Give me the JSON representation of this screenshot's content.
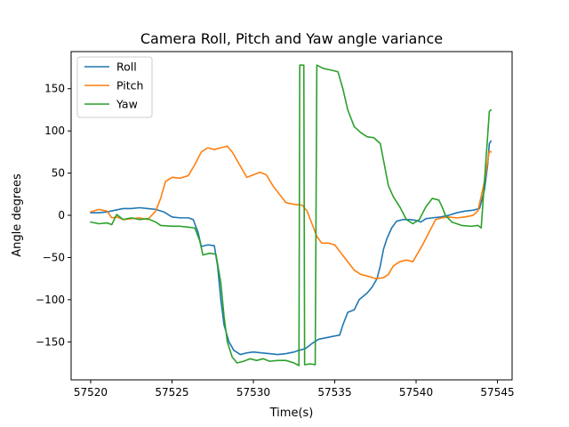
{
  "chart_data": {
    "type": "line",
    "title": "Camera Roll, Pitch and Yaw angle variance",
    "xlabel": "Time(s)",
    "ylabel": "Angle degrees",
    "xlim": [
      57518.8,
      57545.9
    ],
    "ylim": [
      -195,
      194
    ],
    "xticks": [
      57520,
      57525,
      57530,
      57535,
      57540,
      57545
    ],
    "xtick_labels": [
      "57520",
      "57525",
      "57530",
      "57535",
      "57540",
      "57545"
    ],
    "yticks": [
      -150,
      -100,
      -50,
      0,
      50,
      100,
      150
    ],
    "ytick_labels": [
      "−150",
      "−100",
      "−50",
      "0",
      "50",
      "100",
      "150"
    ],
    "grid": false,
    "legend": "top-left",
    "series": [
      {
        "name": "Roll",
        "color": "#1f77b4",
        "points": [
          [
            57520.0,
            3
          ],
          [
            57520.5,
            3
          ],
          [
            57521.0,
            4
          ],
          [
            57521.5,
            6
          ],
          [
            57522.0,
            8
          ],
          [
            57522.5,
            8
          ],
          [
            57523.0,
            9
          ],
          [
            57523.5,
            8
          ],
          [
            57524.0,
            7
          ],
          [
            57524.5,
            4
          ],
          [
            57525.0,
            -2
          ],
          [
            57525.5,
            -3
          ],
          [
            57526.0,
            -3
          ],
          [
            57526.3,
            -5
          ],
          [
            57526.6,
            -20
          ],
          [
            57526.8,
            -37
          ],
          [
            57527.2,
            -35
          ],
          [
            57527.6,
            -36
          ],
          [
            57527.8,
            -60
          ],
          [
            57528.0,
            -100
          ],
          [
            57528.2,
            -130
          ],
          [
            57528.5,
            -150
          ],
          [
            57528.8,
            -160
          ],
          [
            57529.2,
            -165
          ],
          [
            57529.6,
            -163
          ],
          [
            57530.0,
            -162
          ],
          [
            57530.5,
            -163
          ],
          [
            57531.0,
            -164
          ],
          [
            57531.5,
            -165
          ],
          [
            57532.0,
            -164
          ],
          [
            57532.5,
            -162
          ],
          [
            57532.8,
            -160
          ],
          [
            57533.2,
            -158
          ],
          [
            57533.6,
            -152
          ],
          [
            57534.0,
            -147
          ],
          [
            57534.5,
            -145
          ],
          [
            57535.0,
            -143
          ],
          [
            57535.3,
            -142
          ],
          [
            57535.5,
            -130
          ],
          [
            57535.8,
            -115
          ],
          [
            57536.2,
            -112
          ],
          [
            57536.5,
            -100
          ],
          [
            57537.0,
            -92
          ],
          [
            57537.3,
            -85
          ],
          [
            57537.6,
            -75
          ],
          [
            57537.8,
            -60
          ],
          [
            57538.0,
            -40
          ],
          [
            57538.2,
            -28
          ],
          [
            57538.5,
            -15
          ],
          [
            57538.8,
            -7
          ],
          [
            57539.2,
            -5
          ],
          [
            57539.6,
            -5
          ],
          [
            57540.0,
            -6
          ],
          [
            57540.3,
            -8
          ],
          [
            57540.6,
            -4
          ],
          [
            57541.0,
            -3
          ],
          [
            57541.5,
            -2
          ],
          [
            57542.0,
            0
          ],
          [
            57542.5,
            3
          ],
          [
            57543.0,
            5
          ],
          [
            57543.5,
            6
          ],
          [
            57543.9,
            8
          ],
          [
            57544.2,
            30
          ],
          [
            57544.4,
            60
          ],
          [
            57544.5,
            85
          ],
          [
            57544.6,
            88
          ]
        ]
      },
      {
        "name": "Pitch",
        "color": "#ff7f0e",
        "points": [
          [
            57520.0,
            4
          ],
          [
            57520.5,
            7
          ],
          [
            57521.0,
            5
          ],
          [
            57521.3,
            -3
          ],
          [
            57521.6,
            -2
          ],
          [
            57522.0,
            -5
          ],
          [
            57522.5,
            -4
          ],
          [
            57523.0,
            -3
          ],
          [
            57523.5,
            -5
          ],
          [
            57524.0,
            5
          ],
          [
            57524.3,
            20
          ],
          [
            57524.6,
            40
          ],
          [
            57525.0,
            45
          ],
          [
            57525.5,
            44
          ],
          [
            57526.0,
            47
          ],
          [
            57526.4,
            60
          ],
          [
            57526.8,
            75
          ],
          [
            57527.2,
            80
          ],
          [
            57527.6,
            78
          ],
          [
            57528.0,
            80
          ],
          [
            57528.4,
            82
          ],
          [
            57528.7,
            75
          ],
          [
            57529.0,
            65
          ],
          [
            57529.3,
            55
          ],
          [
            57529.6,
            45
          ],
          [
            57530.0,
            48
          ],
          [
            57530.4,
            51
          ],
          [
            57530.8,
            48
          ],
          [
            57531.2,
            35
          ],
          [
            57531.6,
            25
          ],
          [
            57532.0,
            15
          ],
          [
            57532.5,
            13
          ],
          [
            57533.0,
            12
          ],
          [
            57533.3,
            5
          ],
          [
            57533.6,
            -10
          ],
          [
            57533.9,
            -25
          ],
          [
            57534.2,
            -33
          ],
          [
            57534.6,
            -33
          ],
          [
            57535.0,
            -35
          ],
          [
            57535.4,
            -45
          ],
          [
            57535.8,
            -55
          ],
          [
            57536.2,
            -65
          ],
          [
            57536.6,
            -70
          ],
          [
            57537.0,
            -72
          ],
          [
            57537.5,
            -75
          ],
          [
            57538.0,
            -74
          ],
          [
            57538.3,
            -70
          ],
          [
            57538.6,
            -60
          ],
          [
            57539.0,
            -55
          ],
          [
            57539.4,
            -53
          ],
          [
            57539.8,
            -55
          ],
          [
            57540.1,
            -45
          ],
          [
            57540.4,
            -35
          ],
          [
            57540.8,
            -20
          ],
          [
            57541.2,
            -5
          ],
          [
            57541.6,
            -3
          ],
          [
            57542.0,
            -2
          ],
          [
            57542.5,
            -3
          ],
          [
            57543.0,
            -2
          ],
          [
            57543.5,
            0
          ],
          [
            57543.8,
            5
          ],
          [
            57544.2,
            40
          ],
          [
            57544.5,
            76
          ],
          [
            57544.6,
            75
          ]
        ]
      },
      {
        "name": "Yaw",
        "color": "#2ca02c",
        "points": [
          [
            57520.0,
            -8
          ],
          [
            57520.5,
            -10
          ],
          [
            57521.0,
            -9
          ],
          [
            57521.3,
            -11
          ],
          [
            57521.6,
            1
          ],
          [
            57522.0,
            -5
          ],
          [
            57522.5,
            -3
          ],
          [
            57523.0,
            -5
          ],
          [
            57523.5,
            -4
          ],
          [
            57524.0,
            -8
          ],
          [
            57524.3,
            -12
          ],
          [
            57525.0,
            -13
          ],
          [
            57525.5,
            -13
          ],
          [
            57526.0,
            -14
          ],
          [
            57526.4,
            -15
          ],
          [
            57526.7,
            -30
          ],
          [
            57526.9,
            -47
          ],
          [
            57527.3,
            -45
          ],
          [
            57527.7,
            -46
          ],
          [
            57528.0,
            -80
          ],
          [
            57528.2,
            -120
          ],
          [
            57528.4,
            -150
          ],
          [
            57528.7,
            -168
          ],
          [
            57529.0,
            -175
          ],
          [
            57529.4,
            -173
          ],
          [
            57529.8,
            -170
          ],
          [
            57530.2,
            -172
          ],
          [
            57530.6,
            -170
          ],
          [
            57531.0,
            -173
          ],
          [
            57531.5,
            -172
          ],
          [
            57532.0,
            -172
          ],
          [
            57532.5,
            -175
          ],
          [
            57532.8,
            -178
          ],
          [
            57532.85,
            178
          ],
          [
            57533.1,
            178
          ],
          [
            57533.15,
            -177
          ],
          [
            57533.5,
            -176
          ],
          [
            57533.8,
            -177
          ],
          [
            57533.9,
            178
          ],
          [
            57534.3,
            174
          ],
          [
            57534.8,
            172
          ],
          [
            57535.2,
            170
          ],
          [
            57535.5,
            150
          ],
          [
            57535.8,
            125
          ],
          [
            57536.2,
            105
          ],
          [
            57536.6,
            98
          ],
          [
            57537.0,
            93
          ],
          [
            57537.4,
            92
          ],
          [
            57537.8,
            85
          ],
          [
            57538.0,
            65
          ],
          [
            57538.3,
            35
          ],
          [
            57538.6,
            22
          ],
          [
            57539.0,
            10
          ],
          [
            57539.4,
            -5
          ],
          [
            57539.8,
            -10
          ],
          [
            57540.2,
            -5
          ],
          [
            57540.6,
            10
          ],
          [
            57541.0,
            20
          ],
          [
            57541.4,
            18
          ],
          [
            57541.6,
            10
          ],
          [
            57541.8,
            0
          ],
          [
            57542.2,
            -8
          ],
          [
            57542.8,
            -12
          ],
          [
            57543.4,
            -13
          ],
          [
            57543.8,
            -12
          ],
          [
            57544.0,
            -15
          ],
          [
            57544.2,
            40
          ],
          [
            57544.4,
            95
          ],
          [
            57544.5,
            123
          ],
          [
            57544.6,
            125
          ]
        ]
      }
    ]
  }
}
